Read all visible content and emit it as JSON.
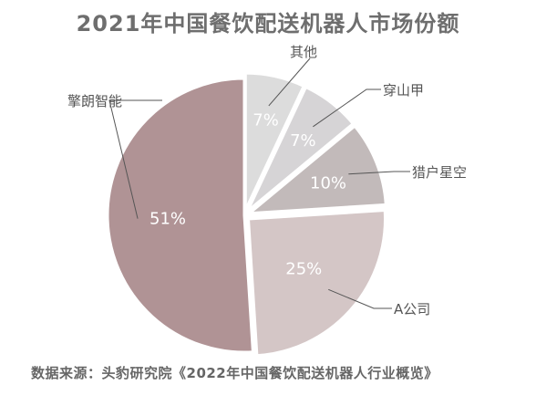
{
  "chart_data": {
    "type": "pie",
    "title": "2021年中国餐饮配送机器人市场份额",
    "source": "数据来源：头豹研究院《2022年中国餐饮配送机器人行业概览》",
    "slices": [
      {
        "name": "擎朗智能",
        "value": 51,
        "label": "51%",
        "color": "#b09395"
      },
      {
        "name": "A公司",
        "value": 25,
        "label": "25%",
        "color": "#d4c6c6"
      },
      {
        "name": "猎户星空",
        "value": 10,
        "label": "10%",
        "color": "#c2baba"
      },
      {
        "name": "穿山甲",
        "value": 7,
        "label": "7%",
        "color": "#d6d4d6"
      },
      {
        "name": "其他",
        "value": 7,
        "label": "7%",
        "color": "#dcdcdc"
      }
    ]
  }
}
